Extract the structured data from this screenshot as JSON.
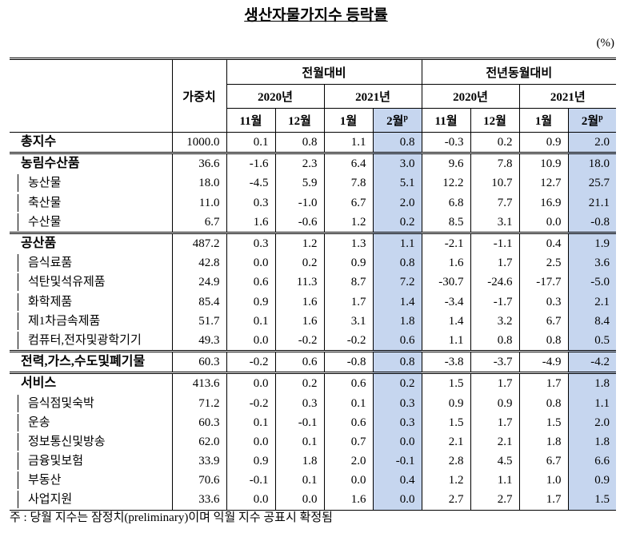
{
  "title": "생산자물가지수 등락률",
  "unit": "(%)",
  "header": {
    "weight": "가중치",
    "preliminary_mark": "p",
    "groups": [
      {
        "label": "전월대비",
        "years": [
          {
            "label": "2020년",
            "months": [
              "11월",
              "12월"
            ]
          },
          {
            "label": "2021년",
            "months": [
              "1월",
              "2월"
            ]
          }
        ]
      },
      {
        "label": "전년동월대비",
        "years": [
          {
            "label": "2020년",
            "months": [
              "11월",
              "12월"
            ]
          },
          {
            "label": "2021년",
            "months": [
              "1월",
              "2월"
            ]
          }
        ]
      }
    ]
  },
  "table": {
    "groups": [
      {
        "label": "총지수",
        "values": [
          "1000.0",
          "0.1",
          "0.8",
          "1.1",
          "0.8",
          "-0.3",
          "0.2",
          "0.9",
          "2.0"
        ],
        "items": []
      },
      {
        "label": "농림수산품",
        "values": [
          "36.6",
          "-1.6",
          "2.3",
          "6.4",
          "3.0",
          "9.6",
          "7.8",
          "10.9",
          "18.0"
        ],
        "items": [
          {
            "label": "농산물",
            "values": [
              "18.0",
              "-4.5",
              "5.9",
              "7.8",
              "5.1",
              "12.2",
              "10.7",
              "12.7",
              "25.7"
            ]
          },
          {
            "label": "축산물",
            "values": [
              "11.0",
              "0.3",
              "-1.0",
              "6.7",
              "2.0",
              "6.8",
              "7.7",
              "16.9",
              "21.1"
            ]
          },
          {
            "label": "수산물",
            "values": [
              "6.7",
              "1.6",
              "-0.6",
              "1.2",
              "0.2",
              "8.5",
              "3.1",
              "0.0",
              "-0.8"
            ]
          }
        ]
      },
      {
        "label": "공산품",
        "values": [
          "487.2",
          "0.3",
          "1.2",
          "1.3",
          "1.1",
          "-2.1",
          "-1.1",
          "0.4",
          "1.9"
        ],
        "items": [
          {
            "label": "음식료품",
            "values": [
              "42.8",
              "0.0",
              "0.2",
              "0.9",
              "0.8",
              "1.6",
              "1.7",
              "2.5",
              "3.6"
            ]
          },
          {
            "label": "석탄및석유제품",
            "values": [
              "24.9",
              "0.6",
              "11.3",
              "8.7",
              "7.2",
              "-30.7",
              "-24.6",
              "-17.7",
              "-5.0"
            ]
          },
          {
            "label": "화학제품",
            "values": [
              "85.4",
              "0.9",
              "1.6",
              "1.7",
              "1.4",
              "-3.4",
              "-1.7",
              "0.3",
              "2.1"
            ]
          },
          {
            "label": "제1차금속제품",
            "values": [
              "51.7",
              "0.1",
              "1.6",
              "3.1",
              "1.8",
              "1.4",
              "3.2",
              "6.7",
              "8.4"
            ]
          },
          {
            "label": "컴퓨터,전자및광학기기",
            "values": [
              "49.3",
              "0.0",
              "-0.2",
              "-0.2",
              "0.6",
              "1.1",
              "0.8",
              "0.8",
              "0.5"
            ]
          }
        ]
      },
      {
        "label": "전력,가스,수도및폐기물",
        "values": [
          "60.3",
          "-0.2",
          "0.6",
          "-0.8",
          "0.8",
          "-3.8",
          "-3.7",
          "-4.9",
          "-4.2"
        ],
        "items": []
      },
      {
        "label": "서비스",
        "values": [
          "413.6",
          "0.0",
          "0.2",
          "0.6",
          "0.2",
          "1.5",
          "1.7",
          "1.7",
          "1.8"
        ],
        "items": [
          {
            "label": "음식점및숙박",
            "values": [
              "71.2",
              "-0.2",
              "0.3",
              "0.1",
              "0.3",
              "0.9",
              "0.9",
              "0.8",
              "1.1"
            ]
          },
          {
            "label": "운송",
            "values": [
              "60.3",
              "0.1",
              "-0.1",
              "0.6",
              "0.3",
              "1.5",
              "1.7",
              "1.5",
              "2.0"
            ]
          },
          {
            "label": "정보통신및방송",
            "values": [
              "62.0",
              "0.0",
              "0.1",
              "0.7",
              "0.0",
              "2.1",
              "2.1",
              "1.8",
              "1.8"
            ]
          },
          {
            "label": "금융및보험",
            "values": [
              "33.9",
              "0.9",
              "1.8",
              "2.0",
              "-0.1",
              "2.8",
              "4.5",
              "6.7",
              "6.6"
            ]
          },
          {
            "label": "부동산",
            "values": [
              "70.6",
              "-0.1",
              "0.1",
              "0.0",
              "0.4",
              "1.2",
              "1.1",
              "1.0",
              "0.9"
            ]
          },
          {
            "label": "사업지원",
            "values": [
              "33.6",
              "0.0",
              "0.0",
              "1.6",
              "0.0",
              "2.7",
              "2.7",
              "1.7",
              "1.5"
            ]
          }
        ]
      }
    ]
  },
  "footnote": "주 : 당월 지수는 잠정치(preliminary)이며 익월 지수 공표시 확정됨"
}
